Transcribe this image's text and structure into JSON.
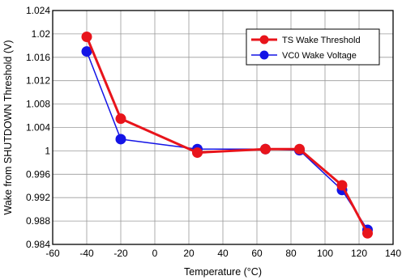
{
  "chart_data": {
    "type": "line",
    "xlabel": "Temperature (°C)",
    "ylabel": "Wake from SHUTDOWN Threshold (V)",
    "xlim": [
      -60,
      140
    ],
    "ylim": [
      0.984,
      1.024
    ],
    "x_ticks": [
      -60,
      -40,
      -20,
      0,
      20,
      40,
      60,
      80,
      100,
      120,
      140
    ],
    "x_tick_labels": [
      "-60",
      "-40",
      "-20",
      "0",
      "20",
      "40",
      "60",
      "80",
      "100",
      "120",
      "140"
    ],
    "y_ticks": [
      0.984,
      0.988,
      0.992,
      0.996,
      1.0,
      1.004,
      1.008,
      1.012,
      1.016,
      1.02,
      1.024
    ],
    "y_tick_labels": [
      "0.984",
      "0.988",
      "0.992",
      "0.996",
      "1",
      "1.004",
      "1.008",
      "1.012",
      "1.016",
      "1.02",
      "1.024"
    ],
    "grid": true,
    "legend_position": "top-right",
    "series": [
      {
        "name": "TS Wake Threshold",
        "color": "#e8141b",
        "x": [
          -40,
          -20,
          25,
          65,
          85,
          110,
          125
        ],
        "y": [
          1.0195,
          1.0055,
          0.9997,
          1.0003,
          1.0003,
          0.9941,
          0.9859
        ]
      },
      {
        "name": "VC0 Wake Voltage",
        "color": "#1414e6",
        "x": [
          -40,
          -20,
          25,
          65,
          85,
          110,
          125
        ],
        "y": [
          1.017,
          1.002,
          1.0003,
          1.0003,
          1.0001,
          0.9933,
          0.9865
        ]
      }
    ]
  }
}
